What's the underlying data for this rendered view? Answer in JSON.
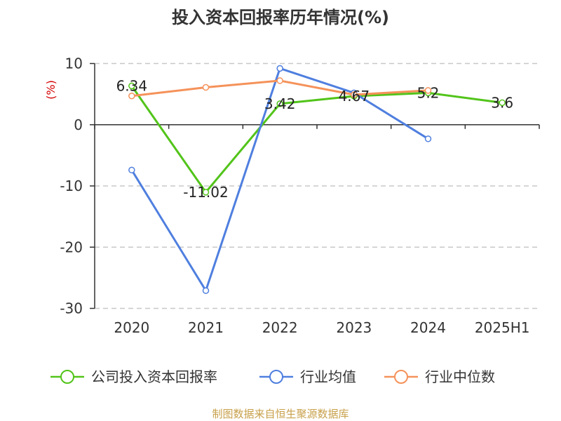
{
  "chart_data": {
    "type": "line",
    "title": "投入资本回报率历年情况(%)",
    "ylabel": "(%)",
    "xlabel": "",
    "categories": [
      "2020",
      "2021",
      "2022",
      "2023",
      "2024",
      "2025H1"
    ],
    "ylim": [
      -30,
      10
    ],
    "yticks": [
      10,
      0,
      -10,
      -20,
      -30
    ],
    "grid": true,
    "legend_position": "bottom",
    "series": [
      {
        "name": "公司投入资本回报率",
        "color": "#52c41a",
        "values": [
          6.34,
          -11.02,
          3.42,
          4.67,
          5.2,
          3.6
        ],
        "labels": [
          "6.34",
          "-11.02",
          "3.42",
          "4.67",
          "5.2",
          "3.6"
        ]
      },
      {
        "name": "行业均值",
        "color": "#4f7fdf",
        "values": [
          -7.4,
          -27.1,
          9.2,
          5.2,
          -2.3,
          null
        ]
      },
      {
        "name": "行业中位数",
        "color": "#f5925a",
        "values": [
          4.7,
          6.1,
          7.2,
          4.9,
          5.6,
          null
        ]
      }
    ],
    "source": "制图数据来自恒生聚源数据库"
  }
}
